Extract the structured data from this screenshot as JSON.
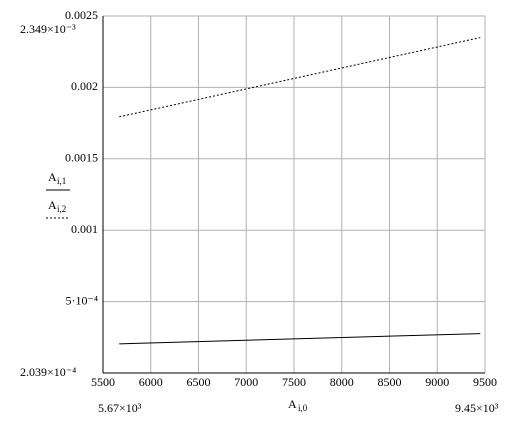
{
  "chart_data": {
    "type": "line",
    "x_label": {
      "main": "A",
      "sub": "i,0"
    },
    "x": [
      5670,
      9450
    ],
    "series": [
      {
        "name": "A",
        "subscript": "i,1",
        "color": "#000000",
        "dash": "solid",
        "values": [
          0.0002039,
          0.000276
        ]
      },
      {
        "name": "A",
        "subscript": "i,2",
        "color": "#000000",
        "dash": "dotted",
        "values": [
          0.001794,
          0.002349
        ]
      }
    ],
    "xlim": [
      5500,
      9500
    ],
    "xticks": [
      5500,
      6000,
      6500,
      7000,
      7500,
      8000,
      8500,
      9000,
      9500
    ],
    "ylim": [
      0,
      0.0025
    ],
    "yticks": [
      0.0025,
      0.002,
      0.0015,
      0.001,
      {
        "value": 0.0005,
        "label": "5·10⁻⁴"
      }
    ],
    "grid": true,
    "corner_labels": {
      "y_max": "2.349×10⁻³",
      "y_min": "2.039×10⁻⁴",
      "x_min": "5.67×10³",
      "x_max": "9.45×10³"
    }
  }
}
